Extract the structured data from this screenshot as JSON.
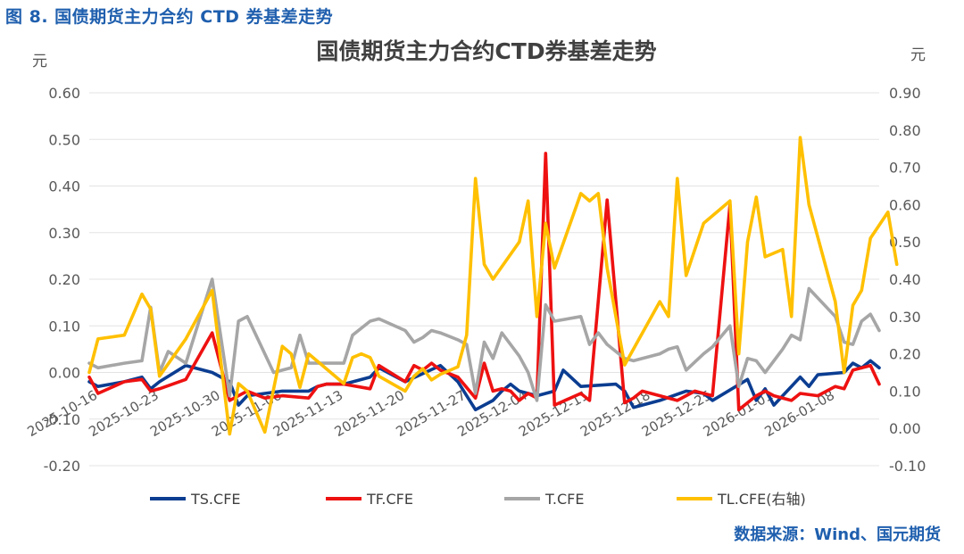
{
  "caption": "图 8. 国债期货主力合约 CTD 券基差走势",
  "source": "数据来源：Wind、国元期货",
  "chart_data": {
    "type": "line",
    "title": "国债期货主力合约CTD券基差走势",
    "left_unit": "元",
    "right_unit": "元",
    "ylim_left": [
      -0.2,
      0.6
    ],
    "ylim_right": [
      -0.1,
      0.9
    ],
    "yticks_left": [
      "-0.20",
      "-0.10",
      "0.00",
      "0.10",
      "0.20",
      "0.30",
      "0.40",
      "0.50",
      "0.60"
    ],
    "yticks_right": [
      "-0.10",
      "0.00",
      "0.10",
      "0.20",
      "0.30",
      "0.40",
      "0.50",
      "0.60",
      "0.70",
      "0.80",
      "0.90"
    ],
    "x_tick_labels": [
      "2025-10-16",
      "2025-10-23",
      "2025-10-30",
      "2025-11-06",
      "2025-11-13",
      "2025-11-20",
      "2025-11-27",
      "2025-12-04",
      "2025-12-11",
      "2025-12-18",
      "2025-12-25",
      "2026-01-01",
      "2026-01-08"
    ],
    "x_start": "2025-10-16",
    "x_end": "2026-01-14",
    "series": [
      {
        "name": "TS.CFE",
        "color": "#0b3d91",
        "axis": "left",
        "points": [
          [
            "2025-10-16",
            -0.02
          ],
          [
            "2025-10-17",
            -0.03
          ],
          [
            "2025-10-20",
            -0.02
          ],
          [
            "2025-10-22",
            -0.01
          ],
          [
            "2025-10-23",
            -0.035
          ],
          [
            "2025-10-24",
            -0.02
          ],
          [
            "2025-10-27",
            0.015
          ],
          [
            "2025-10-30",
            0.0
          ],
          [
            "2025-11-01",
            -0.02
          ],
          [
            "2025-11-02",
            -0.07
          ],
          [
            "2025-11-03",
            -0.05
          ],
          [
            "2025-11-05",
            -0.045
          ],
          [
            "2025-11-07",
            -0.04
          ],
          [
            "2025-11-10",
            -0.04
          ],
          [
            "2025-11-11",
            -0.03
          ],
          [
            "2025-11-12",
            -0.025
          ],
          [
            "2025-11-14",
            -0.025
          ],
          [
            "2025-11-17",
            -0.01
          ],
          [
            "2025-11-18",
            0.01
          ],
          [
            "2025-11-21",
            -0.02
          ],
          [
            "2025-11-25",
            0.015
          ],
          [
            "2025-11-27",
            -0.02
          ],
          [
            "2025-11-29",
            -0.08
          ],
          [
            "2025-12-01",
            -0.06
          ],
          [
            "2025-12-02",
            -0.04
          ],
          [
            "2025-12-03",
            -0.025
          ],
          [
            "2025-12-04",
            -0.04
          ],
          [
            "2025-12-06",
            -0.05
          ],
          [
            "2025-12-08",
            -0.04
          ],
          [
            "2025-12-09",
            0.005
          ],
          [
            "2025-12-11",
            -0.03
          ],
          [
            "2025-12-15",
            -0.025
          ],
          [
            "2025-12-16",
            -0.04
          ],
          [
            "2025-12-17",
            -0.075
          ],
          [
            "2025-12-20",
            -0.06
          ],
          [
            "2025-12-23",
            -0.04
          ],
          [
            "2025-12-25",
            -0.045
          ],
          [
            "2025-12-26",
            -0.06
          ],
          [
            "2025-12-30",
            -0.015
          ],
          [
            "2025-12-31",
            -0.06
          ],
          [
            "2026-01-01",
            -0.035
          ],
          [
            "2026-01-02",
            -0.07
          ],
          [
            "2026-01-05",
            -0.01
          ],
          [
            "2026-01-06",
            -0.03
          ],
          [
            "2026-01-07",
            -0.005
          ],
          [
            "2026-01-10",
            0.0
          ],
          [
            "2026-01-11",
            0.02
          ],
          [
            "2026-01-12",
            0.01
          ],
          [
            "2026-01-13",
            0.025
          ],
          [
            "2026-01-14",
            0.01
          ]
        ]
      },
      {
        "name": "TF.CFE",
        "color": "#ee1111",
        "axis": "left",
        "points": [
          [
            "2025-10-16",
            -0.01
          ],
          [
            "2025-10-17",
            -0.045
          ],
          [
            "2025-10-20",
            -0.02
          ],
          [
            "2025-10-22",
            -0.015
          ],
          [
            "2025-10-23",
            -0.04
          ],
          [
            "2025-10-24",
            -0.035
          ],
          [
            "2025-10-27",
            -0.015
          ],
          [
            "2025-10-30",
            0.085
          ],
          [
            "2025-11-01",
            -0.06
          ],
          [
            "2025-11-02",
            -0.05
          ],
          [
            "2025-11-03",
            -0.04
          ],
          [
            "2025-11-05",
            -0.055
          ],
          [
            "2025-11-07",
            -0.05
          ],
          [
            "2025-11-10",
            -0.055
          ],
          [
            "2025-11-11",
            -0.03
          ],
          [
            "2025-11-12",
            -0.025
          ],
          [
            "2025-11-14",
            -0.025
          ],
          [
            "2025-11-17",
            -0.035
          ],
          [
            "2025-11-18",
            0.015
          ],
          [
            "2025-11-21",
            -0.02
          ],
          [
            "2025-11-22",
            0.015
          ],
          [
            "2025-11-23",
            0.005
          ],
          [
            "2025-11-24",
            0.02
          ],
          [
            "2025-11-25",
            0.005
          ],
          [
            "2025-11-27",
            -0.01
          ],
          [
            "2025-11-29",
            -0.055
          ],
          [
            "2025-11-30",
            0.02
          ],
          [
            "2025-12-01",
            -0.04
          ],
          [
            "2025-12-02",
            -0.035
          ],
          [
            "2025-12-03",
            -0.04
          ],
          [
            "2025-12-04",
            -0.06
          ],
          [
            "2025-12-05",
            -0.045
          ],
          [
            "2025-12-06",
            -0.055
          ],
          [
            "2025-12-07",
            0.47
          ],
          [
            "2025-12-08",
            -0.07
          ],
          [
            "2025-12-11",
            -0.045
          ],
          [
            "2025-12-12",
            -0.06
          ],
          [
            "2025-12-14",
            0.37
          ],
          [
            "2025-12-16",
            -0.065
          ],
          [
            "2025-12-17",
            -0.055
          ],
          [
            "2025-12-18",
            -0.04
          ],
          [
            "2025-12-20",
            -0.05
          ],
          [
            "2025-12-22",
            -0.06
          ],
          [
            "2025-12-24",
            -0.04
          ],
          [
            "2025-12-25",
            -0.045
          ],
          [
            "2025-12-26",
            -0.05
          ],
          [
            "2025-12-28",
            0.36
          ],
          [
            "2025-12-29",
            -0.08
          ],
          [
            "2025-12-31",
            -0.05
          ],
          [
            "2026-01-01",
            -0.04
          ],
          [
            "2026-01-02",
            -0.05
          ],
          [
            "2026-01-04",
            -0.06
          ],
          [
            "2026-01-05",
            -0.045
          ],
          [
            "2026-01-07",
            -0.05
          ],
          [
            "2026-01-09",
            -0.03
          ],
          [
            "2026-01-10",
            -0.035
          ],
          [
            "2026-01-11",
            0.005
          ],
          [
            "2026-01-13",
            0.015
          ],
          [
            "2026-01-14",
            -0.025
          ]
        ]
      },
      {
        "name": "T.CFE",
        "color": "#a6a6a6",
        "axis": "left",
        "points": [
          [
            "2025-10-16",
            0.02
          ],
          [
            "2025-10-17",
            0.01
          ],
          [
            "2025-10-20",
            0.02
          ],
          [
            "2025-10-22",
            0.025
          ],
          [
            "2025-10-23",
            0.14
          ],
          [
            "2025-10-24",
            0.0
          ],
          [
            "2025-10-25",
            0.045
          ],
          [
            "2025-10-27",
            0.02
          ],
          [
            "2025-10-30",
            0.2
          ],
          [
            "2025-11-01",
            -0.05
          ],
          [
            "2025-11-02",
            0.11
          ],
          [
            "2025-11-03",
            0.12
          ],
          [
            "2025-11-06",
            0.0
          ],
          [
            "2025-11-08",
            0.01
          ],
          [
            "2025-11-09",
            0.08
          ],
          [
            "2025-11-10",
            0.02
          ],
          [
            "2025-11-14",
            0.02
          ],
          [
            "2025-11-15",
            0.08
          ],
          [
            "2025-11-17",
            0.11
          ],
          [
            "2025-11-18",
            0.115
          ],
          [
            "2025-11-21",
            0.09
          ],
          [
            "2025-11-22",
            0.065
          ],
          [
            "2025-11-23",
            0.075
          ],
          [
            "2025-11-24",
            0.09
          ],
          [
            "2025-11-25",
            0.085
          ],
          [
            "2025-11-27",
            0.07
          ],
          [
            "2025-11-28",
            0.06
          ],
          [
            "2025-11-29",
            -0.045
          ],
          [
            "2025-11-30",
            0.065
          ],
          [
            "2025-12-01",
            0.03
          ],
          [
            "2025-12-02",
            0.085
          ],
          [
            "2025-12-04",
            0.035
          ],
          [
            "2025-12-05",
            0.0
          ],
          [
            "2025-12-06",
            -0.06
          ],
          [
            "2025-12-07",
            0.145
          ],
          [
            "2025-12-08",
            0.11
          ],
          [
            "2025-12-11",
            0.12
          ],
          [
            "2025-12-12",
            0.06
          ],
          [
            "2025-12-13",
            0.085
          ],
          [
            "2025-12-14",
            0.06
          ],
          [
            "2025-12-16",
            0.03
          ],
          [
            "2025-12-17",
            0.025
          ],
          [
            "2025-12-20",
            0.04
          ],
          [
            "2025-12-21",
            0.05
          ],
          [
            "2025-12-22",
            0.055
          ],
          [
            "2025-12-23",
            0.005
          ],
          [
            "2025-12-25",
            0.04
          ],
          [
            "2025-12-26",
            0.055
          ],
          [
            "2025-12-28",
            0.1
          ],
          [
            "2025-12-29",
            -0.03
          ],
          [
            "2025-12-30",
            0.03
          ],
          [
            "2025-12-31",
            0.025
          ],
          [
            "2026-01-01",
            0.0
          ],
          [
            "2026-01-03",
            0.05
          ],
          [
            "2026-01-04",
            0.08
          ],
          [
            "2026-01-05",
            0.07
          ],
          [
            "2026-01-06",
            0.18
          ],
          [
            "2026-01-09",
            0.12
          ],
          [
            "2026-01-10",
            0.065
          ],
          [
            "2026-01-11",
            0.06
          ],
          [
            "2026-01-12",
            0.11
          ],
          [
            "2026-01-13",
            0.125
          ],
          [
            "2026-01-14",
            0.09
          ]
        ]
      },
      {
        "name": "TL.CFE(右轴)",
        "color": "#ffc000",
        "axis": "right",
        "points": [
          [
            "2025-10-16",
            0.15
          ],
          [
            "2025-10-17",
            0.24
          ],
          [
            "2025-10-20",
            0.25
          ],
          [
            "2025-10-22",
            0.36
          ],
          [
            "2025-10-23",
            0.32
          ],
          [
            "2025-10-24",
            0.14
          ],
          [
            "2025-10-27",
            0.24
          ],
          [
            "2025-10-30",
            0.37
          ],
          [
            "2025-11-01",
            -0.015
          ],
          [
            "2025-11-02",
            0.12
          ],
          [
            "2025-11-03",
            0.1
          ],
          [
            "2025-11-05",
            -0.01
          ],
          [
            "2025-11-07",
            0.22
          ],
          [
            "2025-11-08",
            0.2
          ],
          [
            "2025-11-09",
            0.11
          ],
          [
            "2025-11-10",
            0.2
          ],
          [
            "2025-11-11",
            0.18
          ],
          [
            "2025-11-14",
            0.12
          ],
          [
            "2025-11-15",
            0.19
          ],
          [
            "2025-11-16",
            0.2
          ],
          [
            "2025-11-17",
            0.19
          ],
          [
            "2025-11-18",
            0.14
          ],
          [
            "2025-11-21",
            0.1
          ],
          [
            "2025-11-22",
            0.14
          ],
          [
            "2025-11-23",
            0.16
          ],
          [
            "2025-11-24",
            0.13
          ],
          [
            "2025-11-25",
            0.145
          ],
          [
            "2025-11-27",
            0.165
          ],
          [
            "2025-11-28",
            0.25
          ],
          [
            "2025-11-29",
            0.67
          ],
          [
            "2025-11-30",
            0.44
          ],
          [
            "2025-12-01",
            0.4
          ],
          [
            "2025-12-04",
            0.5
          ],
          [
            "2025-12-05",
            0.61
          ],
          [
            "2025-12-06",
            0.3
          ],
          [
            "2025-12-07",
            0.55
          ],
          [
            "2025-12-08",
            0.43
          ],
          [
            "2025-12-11",
            0.63
          ],
          [
            "2025-12-12",
            0.61
          ],
          [
            "2025-12-13",
            0.63
          ],
          [
            "2025-12-14",
            0.43
          ],
          [
            "2025-12-16",
            0.17
          ],
          [
            "2025-12-20",
            0.34
          ],
          [
            "2025-12-21",
            0.3
          ],
          [
            "2025-12-22",
            0.67
          ],
          [
            "2025-12-23",
            0.41
          ],
          [
            "2025-12-25",
            0.55
          ],
          [
            "2025-12-28",
            0.61
          ],
          [
            "2025-12-29",
            0.2
          ],
          [
            "2025-12-30",
            0.5
          ],
          [
            "2025-12-31",
            0.62
          ],
          [
            "2026-01-01",
            0.46
          ],
          [
            "2026-01-03",
            0.48
          ],
          [
            "2026-01-04",
            0.3
          ],
          [
            "2026-01-05",
            0.78
          ],
          [
            "2026-01-06",
            0.6
          ],
          [
            "2026-01-09",
            0.34
          ],
          [
            "2026-01-10",
            0.15
          ],
          [
            "2026-01-11",
            0.33
          ],
          [
            "2026-01-12",
            0.37
          ],
          [
            "2026-01-13",
            0.51
          ],
          [
            "2026-01-15",
            0.58
          ],
          [
            "2026-01-16",
            0.44
          ]
        ]
      }
    ]
  }
}
